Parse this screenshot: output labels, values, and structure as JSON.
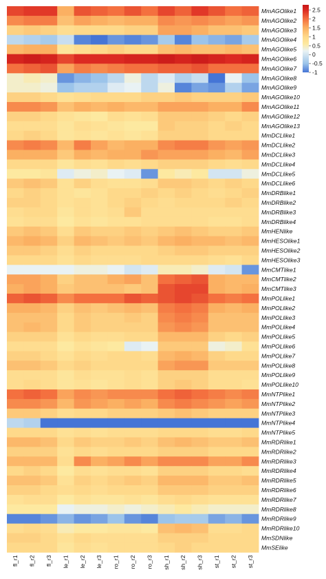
{
  "chart_data": {
    "type": "heatmap",
    "columns": [
      "fl_r1",
      "fl_r2",
      "fl_r3",
      "le_r1",
      "le_r2",
      "le_r3",
      "ro_r1",
      "ro_r2",
      "ro_r3",
      "sh_r1",
      "sh_r2",
      "sh_r3",
      "st_r1",
      "st_r2",
      "st_r3"
    ],
    "rows": [
      "MmAGOlike1",
      "MmAGOlike2",
      "MmAGOlike3",
      "MmAGOlike4",
      "MmAGOlike5",
      "MmAGOlike6",
      "MmAGOlike7",
      "MmAGOlike8",
      "MmAGOlike9",
      "MmAGOlike10",
      "MmAGOlike11",
      "MmAGOlike12",
      "MmAGOlike13",
      "MmDCLlike1",
      "MmDCLlike2",
      "MmDCLlike3",
      "MmDCLlike4",
      "MmDCLlike5",
      "MmDCLlike6",
      "MmDRBlike1",
      "MmDRBlike2",
      "MmDRBlike3",
      "MmDRBlike4",
      "MmHENlike",
      "MmHESOlike1",
      "MmHESOlike2",
      "MmHESOlike3",
      "MmCMTlike1",
      "MmCMTlike2",
      "MmCMTlike3",
      "MmPOLlike1",
      "MmPOLlike2",
      "MmPOLlike3",
      "MmPOLlike4",
      "MmPOLlike5",
      "MmPOLlike6",
      "MmPOLlike7",
      "MmPOLlike8",
      "MmPOLlike9",
      "MmPOLlike10",
      "MmNTPlike1",
      "MmNTPlike2",
      "MmNTPlike3",
      "MmNTPlike4",
      "MmNTPlike5",
      "MmRDRlike1",
      "MmRDRlike2",
      "MmRDRlike3",
      "MmRDRlike4",
      "MmRDRlike5",
      "MmRDRlike6",
      "MmRDRlike7",
      "MmRDRlike8",
      "MmRDRlike9",
      "MmRDRlike10",
      "MmSDNlike",
      "MmSElike"
    ],
    "values": [
      [
        2.3,
        2.4,
        2.4,
        1.5,
        2.2,
        2.1,
        2.0,
        2.2,
        2.0,
        2.3,
        2.1,
        2.4,
        2.2,
        2.0,
        2.1
      ],
      [
        1.8,
        1.9,
        1.9,
        1.3,
        1.6,
        1.5,
        1.4,
        1.5,
        1.5,
        1.8,
        1.7,
        1.8,
        1.7,
        1.6,
        1.7
      ],
      [
        1.1,
        1.2,
        1.1,
        0.9,
        1.0,
        1.0,
        1.0,
        1.1,
        1.1,
        1.6,
        1.6,
        1.5,
        1.3,
        1.3,
        1.2
      ],
      [
        -0.2,
        -0.3,
        -0.4,
        -0.1,
        -0.9,
        -1.0,
        -0.8,
        -0.9,
        -0.8,
        -0.4,
        -0.9,
        -0.5,
        -0.6,
        -0.7,
        -0.4
      ],
      [
        1.4,
        1.5,
        1.5,
        0.7,
        0.9,
        1.0,
        1.1,
        1.0,
        1.0,
        1.3,
        1.4,
        1.3,
        1.3,
        1.4,
        1.3
      ],
      [
        2.6,
        2.7,
        2.6,
        2.3,
        2.5,
        2.5,
        2.5,
        2.6,
        2.6,
        2.7,
        2.6,
        2.7,
        2.6,
        2.5,
        2.6
      ],
      [
        2.0,
        2.1,
        2.2,
        1.6,
        1.9,
        1.8,
        1.9,
        2.0,
        2.0,
        2.1,
        2.1,
        2.2,
        2.0,
        2.0,
        2.0
      ],
      [
        0.4,
        0.5,
        0.4,
        -0.8,
        -0.6,
        -0.5,
        -0.2,
        0.3,
        -0.2,
        0.1,
        -0.3,
        -0.1,
        -1.0,
        0.2,
        -0.5
      ],
      [
        0.4,
        0.4,
        0.3,
        -0.5,
        -0.3,
        -0.3,
        0.1,
        0.2,
        -0.2,
        0.3,
        -0.9,
        -0.7,
        -0.8,
        -0.3,
        -0.7
      ],
      [
        1.1,
        1.1,
        1.0,
        0.8,
        0.9,
        1.0,
        1.0,
        1.0,
        1.1,
        1.1,
        1.2,
        1.1,
        1.1,
        1.1,
        1.2
      ],
      [
        1.8,
        1.8,
        1.7,
        1.3,
        1.5,
        1.4,
        1.5,
        1.4,
        1.4,
        1.6,
        1.6,
        1.6,
        1.5,
        1.5,
        1.8
      ],
      [
        1.1,
        1.1,
        1.0,
        0.8,
        0.7,
        0.6,
        0.9,
        0.8,
        0.9,
        1.2,
        1.2,
        1.2,
        1.1,
        1.0,
        1.1
      ],
      [
        0.9,
        0.9,
        0.9,
        0.7,
        0.9,
        0.8,
        0.7,
        0.6,
        0.6,
        1.2,
        1.1,
        1.1,
        1.0,
        1.1,
        1.0
      ],
      [
        1.0,
        1.1,
        1.0,
        0.7,
        0.8,
        0.7,
        0.8,
        0.7,
        0.8,
        1.1,
        1.1,
        1.1,
        1.0,
        1.0,
        1.0
      ],
      [
        1.8,
        1.9,
        1.8,
        1.4,
        1.9,
        1.6,
        1.4,
        1.5,
        1.5,
        1.8,
        1.9,
        1.9,
        1.7,
        1.6,
        1.7
      ],
      [
        1.5,
        1.5,
        1.5,
        1.2,
        1.5,
        1.4,
        1.5,
        1.5,
        1.7,
        1.6,
        1.6,
        1.6,
        1.5,
        1.4,
        1.6
      ],
      [
        1.0,
        1.0,
        1.0,
        0.7,
        0.9,
        0.8,
        1.0,
        0.9,
        1.0,
        1.1,
        1.1,
        1.1,
        1.0,
        0.9,
        1.0
      ],
      [
        0.6,
        0.6,
        0.7,
        0.1,
        0.3,
        0.4,
        0.2,
        0.1,
        -0.8,
        0.6,
        0.5,
        0.6,
        0.0,
        0.0,
        0.3
      ],
      [
        1.2,
        1.3,
        1.2,
        0.8,
        1.1,
        0.9,
        0.8,
        0.8,
        0.9,
        1.2,
        1.2,
        1.1,
        1.0,
        1.1,
        1.0
      ],
      [
        1.0,
        1.1,
        1.0,
        0.8,
        0.7,
        0.8,
        1.0,
        1.0,
        1.1,
        1.0,
        1.1,
        1.0,
        0.9,
        1.0,
        1.1
      ],
      [
        1.1,
        1.1,
        1.0,
        0.8,
        0.9,
        0.8,
        1.0,
        1.1,
        1.0,
        0.9,
        1.0,
        1.0,
        1.0,
        1.1,
        1.0
      ],
      [
        0.9,
        1.0,
        1.0,
        0.7,
        0.9,
        0.8,
        0.9,
        1.2,
        0.9,
        0.9,
        0.9,
        0.9,
        0.9,
        0.9,
        0.9
      ],
      [
        0.8,
        0.9,
        0.9,
        0.6,
        0.8,
        0.7,
        0.8,
        0.8,
        0.9,
        0.9,
        0.9,
        0.9,
        0.8,
        0.8,
        0.9
      ],
      [
        1.2,
        1.3,
        1.2,
        0.9,
        1.2,
        1.1,
        1.1,
        1.2,
        1.1,
        1.2,
        1.3,
        1.2,
        1.1,
        1.1,
        1.2
      ],
      [
        1.4,
        1.5,
        1.4,
        1.1,
        1.4,
        1.3,
        1.2,
        1.3,
        1.2,
        1.4,
        1.5,
        1.4,
        1.4,
        1.3,
        1.4
      ],
      [
        1.2,
        1.2,
        1.1,
        0.9,
        1.1,
        1.0,
        1.0,
        1.0,
        1.0,
        1.1,
        1.2,
        1.2,
        1.1,
        1.1,
        1.1
      ],
      [
        1.0,
        1.0,
        1.0,
        0.8,
        1.0,
        0.9,
        0.9,
        0.9,
        1.0,
        1.0,
        1.0,
        1.0,
        0.9,
        0.8,
        1.0
      ],
      [
        0.2,
        0.2,
        0.2,
        0.2,
        0.3,
        0.3,
        0.2,
        0.0,
        0.1,
        0.5,
        0.5,
        0.4,
        0.1,
        0.0,
        -0.8
      ],
      [
        1.6,
        1.6,
        1.5,
        1.1,
        1.3,
        1.3,
        1.5,
        1.6,
        1.3,
        2.0,
        2.1,
        2.2,
        1.5,
        1.4,
        1.4
      ],
      [
        1.5,
        1.6,
        1.5,
        1.2,
        1.3,
        1.3,
        1.3,
        1.2,
        1.3,
        2.2,
        2.3,
        2.3,
        1.5,
        1.4,
        1.5
      ],
      [
        2.1,
        2.2,
        2.1,
        1.8,
        2.0,
        2.0,
        2.0,
        2.2,
        2.1,
        2.2,
        2.3,
        2.2,
        2.0,
        1.9,
        2.0
      ],
      [
        1.5,
        1.5,
        1.4,
        1.1,
        1.3,
        1.2,
        1.3,
        1.4,
        1.3,
        1.9,
        2.0,
        1.9,
        1.5,
        1.4,
        1.5
      ],
      [
        1.3,
        1.3,
        1.3,
        1.0,
        1.2,
        1.1,
        1.1,
        1.2,
        1.1,
        1.8,
        1.9,
        1.8,
        1.3,
        1.3,
        1.3
      ],
      [
        1.3,
        1.4,
        1.3,
        1.0,
        1.2,
        1.1,
        1.1,
        1.1,
        1.1,
        1.7,
        1.8,
        1.7,
        1.3,
        1.3,
        1.3
      ],
      [
        1.1,
        1.1,
        1.1,
        0.8,
        1.0,
        0.9,
        0.9,
        1.0,
        1.0,
        1.4,
        1.4,
        1.4,
        1.1,
        1.0,
        1.1
      ],
      [
        0.9,
        0.9,
        0.9,
        0.6,
        0.8,
        0.7,
        0.6,
        0.1,
        0.2,
        1.2,
        1.2,
        1.2,
        0.3,
        0.4,
        0.8
      ],
      [
        1.1,
        1.1,
        1.0,
        0.8,
        1.0,
        0.9,
        1.0,
        1.0,
        0.9,
        1.4,
        1.5,
        1.4,
        1.1,
        1.0,
        1.0
      ],
      [
        1.3,
        1.3,
        1.2,
        1.0,
        1.1,
        1.0,
        1.0,
        1.0,
        1.0,
        1.6,
        1.7,
        1.7,
        1.2,
        1.2,
        1.2
      ],
      [
        0.9,
        0.9,
        0.9,
        0.7,
        0.9,
        0.8,
        0.8,
        0.9,
        0.8,
        1.1,
        1.1,
        1.1,
        0.9,
        0.9,
        0.9
      ],
      [
        0.9,
        1.0,
        0.9,
        0.7,
        0.8,
        0.7,
        0.8,
        0.9,
        0.8,
        1.1,
        1.2,
        1.1,
        0.9,
        0.9,
        0.8
      ],
      [
        2.0,
        2.1,
        2.0,
        1.6,
        1.8,
        1.7,
        1.8,
        1.8,
        1.8,
        2.0,
        2.1,
        2.0,
        1.9,
        1.8,
        1.9
      ],
      [
        1.8,
        1.8,
        1.7,
        1.4,
        1.7,
        1.6,
        1.5,
        1.6,
        1.5,
        1.8,
        1.9,
        1.8,
        1.7,
        1.6,
        1.7
      ],
      [
        1.2,
        1.2,
        1.1,
        0.9,
        1.0,
        1.0,
        1.1,
        1.1,
        1.1,
        1.2,
        1.3,
        1.2,
        1.1,
        1.1,
        1.1
      ],
      [
        -0.2,
        -0.3,
        -1.0,
        -1.0,
        -1.0,
        -1.0,
        -1.0,
        -1.0,
        -1.0,
        -1.0,
        -1.0,
        -1.0,
        -1.0,
        -1.0,
        -1.0
      ],
      [
        1.0,
        1.0,
        1.0,
        0.8,
        0.9,
        0.8,
        0.9,
        0.9,
        0.9,
        1.0,
        1.0,
        1.0,
        0.9,
        0.9,
        1.0
      ],
      [
        1.4,
        1.4,
        1.3,
        1.0,
        1.2,
        1.1,
        1.1,
        1.2,
        1.1,
        1.3,
        1.4,
        1.3,
        1.2,
        1.2,
        1.3
      ],
      [
        1.1,
        1.1,
        1.1,
        0.8,
        1.0,
        0.9,
        1.0,
        1.0,
        1.0,
        1.1,
        1.1,
        1.1,
        1.0,
        1.0,
        1.0
      ],
      [
        1.4,
        1.4,
        1.4,
        0.9,
        1.8,
        1.5,
        1.6,
        1.8,
        1.6,
        1.8,
        1.8,
        1.8,
        1.6,
        1.6,
        1.8
      ],
      [
        1.0,
        1.1,
        1.0,
        0.6,
        0.9,
        0.8,
        0.9,
        0.9,
        0.8,
        1.1,
        1.1,
        1.1,
        1.0,
        1.0,
        0.9
      ],
      [
        1.3,
        1.3,
        1.2,
        0.8,
        1.1,
        1.0,
        1.1,
        1.2,
        1.1,
        1.4,
        1.4,
        1.4,
        1.2,
        1.2,
        1.3
      ],
      [
        1.1,
        1.1,
        1.0,
        0.9,
        1.0,
        0.9,
        1.0,
        1.0,
        1.0,
        1.2,
        1.2,
        1.2,
        1.1,
        1.1,
        1.1
      ],
      [
        0.8,
        0.9,
        0.9,
        0.6,
        0.8,
        0.7,
        0.7,
        0.8,
        0.7,
        0.9,
        1.0,
        0.9,
        0.8,
        0.8,
        0.8
      ],
      [
        0.6,
        0.6,
        0.6,
        0.2,
        0.3,
        0.3,
        0.4,
        0.3,
        0.4,
        0.5,
        0.6,
        0.5,
        0.4,
        0.4,
        0.4
      ],
      [
        -0.9,
        -0.9,
        -0.8,
        -0.6,
        -0.8,
        -0.7,
        -0.5,
        -0.8,
        -0.9,
        -0.5,
        -0.4,
        -0.4,
        -0.7,
        -0.6,
        -0.8
      ],
      [
        0.9,
        1.0,
        0.9,
        0.5,
        0.6,
        0.6,
        0.7,
        0.7,
        0.6,
        1.3,
        1.4,
        1.3,
        0.9,
        0.9,
        1.0
      ],
      [
        1.1,
        1.1,
        1.0,
        0.8,
        1.0,
        0.9,
        0.9,
        0.9,
        0.9,
        1.1,
        1.1,
        1.1,
        1.0,
        1.0,
        1.0
      ],
      [
        1.0,
        1.0,
        1.0,
        0.7,
        0.9,
        0.8,
        0.9,
        0.9,
        0.9,
        1.0,
        1.1,
        1.0,
        1.0,
        1.0,
        1.0
      ]
    ],
    "color_scale": {
      "ticks": [
        2.5,
        2,
        1.5,
        1,
        0.5,
        0,
        -0.5,
        -1
      ],
      "range": [
        -1,
        2.8
      ],
      "stops": [
        {
          "v": -1.0,
          "color": "#4575d6"
        },
        {
          "v": -0.5,
          "color": "#9cc4ea"
        },
        {
          "v": 0.2,
          "color": "#e9f2f4"
        },
        {
          "v": 0.6,
          "color": "#fde9a0"
        },
        {
          "v": 1.0,
          "color": "#fed98a"
        },
        {
          "v": 1.5,
          "color": "#fbb062"
        },
        {
          "v": 2.0,
          "color": "#f4703f"
        },
        {
          "v": 2.5,
          "color": "#dc2a22"
        },
        {
          "v": 2.8,
          "color": "#c61717"
        }
      ]
    }
  }
}
